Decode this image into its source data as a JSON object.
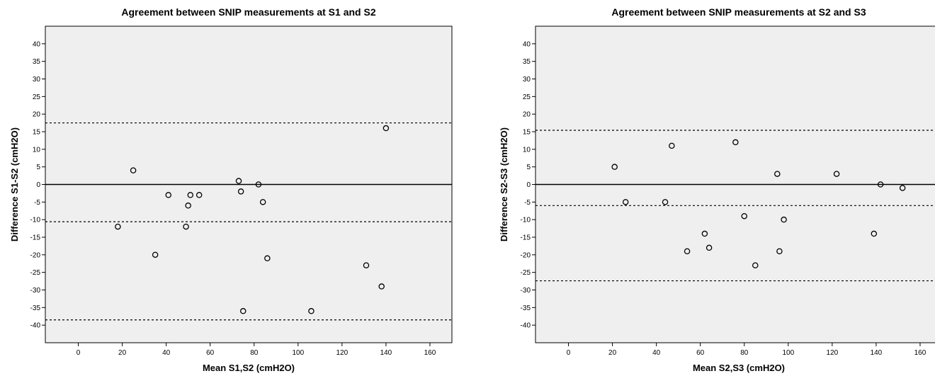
{
  "chart_data": [
    {
      "type": "scatter",
      "title": "Agreement between SNIP measurements at S1 and S2",
      "xlabel": "Mean S1,S2 (cmH2O)",
      "ylabel": "Difference S1-S2 (cmH2O)",
      "xlim": [
        -15,
        170
      ],
      "ylim": [
        -45,
        45
      ],
      "xticks": [
        0,
        20,
        40,
        60,
        80,
        100,
        120,
        140,
        160
      ],
      "yticks": [
        40,
        35,
        30,
        25,
        20,
        15,
        10,
        5,
        0,
        -5,
        -10,
        -15,
        -20,
        -25,
        -30,
        -35,
        -40
      ],
      "zero_line": 0,
      "limits_of_agreement": [
        17.5,
        -10.6,
        -38.5
      ],
      "grid": false,
      "points": [
        {
          "x": 18,
          "y": -12
        },
        {
          "x": 25,
          "y": 4
        },
        {
          "x": 35,
          "y": -20
        },
        {
          "x": 41,
          "y": -3
        },
        {
          "x": 49,
          "y": -12
        },
        {
          "x": 50,
          "y": -6
        },
        {
          "x": 51,
          "y": -3
        },
        {
          "x": 55,
          "y": -3
        },
        {
          "x": 73,
          "y": 1
        },
        {
          "x": 74,
          "y": -2
        },
        {
          "x": 75,
          "y": -36
        },
        {
          "x": 82,
          "y": 0
        },
        {
          "x": 84,
          "y": -5
        },
        {
          "x": 86,
          "y": -21
        },
        {
          "x": 106,
          "y": -36
        },
        {
          "x": 131,
          "y": -23
        },
        {
          "x": 138,
          "y": -29
        },
        {
          "x": 140,
          "y": 16
        }
      ]
    },
    {
      "type": "scatter",
      "title": "Agreement between SNIP measurements at S2 and S3",
      "xlabel": "Mean S2,S3 (cmH2O)",
      "ylabel": "Difference S2-S3 (cmH2O)",
      "xlim": [
        -15,
        170
      ],
      "ylim": [
        -45,
        45
      ],
      "xticks": [
        0,
        20,
        40,
        60,
        80,
        100,
        120,
        140,
        160
      ],
      "yticks": [
        40,
        35,
        30,
        25,
        20,
        15,
        10,
        5,
        0,
        -5,
        -10,
        -15,
        -20,
        -25,
        -30,
        -35,
        -40
      ],
      "zero_line": 0,
      "limits_of_agreement": [
        15.4,
        -6.0,
        -27.4
      ],
      "grid": false,
      "points": [
        {
          "x": 21,
          "y": 5
        },
        {
          "x": 26,
          "y": -5
        },
        {
          "x": 44,
          "y": -5
        },
        {
          "x": 47,
          "y": 11
        },
        {
          "x": 54,
          "y": -19
        },
        {
          "x": 62,
          "y": -14
        },
        {
          "x": 64,
          "y": -18
        },
        {
          "x": 76,
          "y": 12
        },
        {
          "x": 80,
          "y": -9
        },
        {
          "x": 85,
          "y": -23
        },
        {
          "x": 95,
          "y": 3
        },
        {
          "x": 96,
          "y": -19
        },
        {
          "x": 98,
          "y": -10
        },
        {
          "x": 122,
          "y": 3
        },
        {
          "x": 139,
          "y": -14
        },
        {
          "x": 142,
          "y": 0
        },
        {
          "x": 152,
          "y": -1
        }
      ]
    }
  ]
}
